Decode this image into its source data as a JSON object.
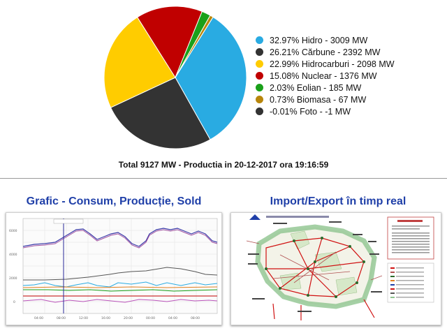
{
  "chart_data": {
    "type": "pie",
    "slices": [
      {
        "label": "32.97% Hidro - 3009 MW",
        "value": 32.97,
        "color": "#29abe2"
      },
      {
        "label": "26.21% Cărbune - 2392 MW",
        "value": 26.21,
        "color": "#333333"
      },
      {
        "label": "22.99% Hidrocarburi - 2098 MW",
        "value": 22.99,
        "color": "#ffcc00"
      },
      {
        "label": "15.08% Nuclear - 1376 MW",
        "value": 15.08,
        "color": "#c00000"
      },
      {
        "label": "2.03% Eolian - 185 MW",
        "value": 2.03,
        "color": "#1aa01a"
      },
      {
        "label": "0.73% Biomasa - 67 MW",
        "value": 0.73,
        "color": "#b8860b"
      },
      {
        "label": "-0.01% Foto - -1 MW",
        "value": -0.01,
        "color": "#333333"
      }
    ],
    "start_angle_deg": -58,
    "title": "Total 9127 MW - Productia in 20-12-2017 ora 19:16:59",
    "legend_position": "right"
  },
  "panels": {
    "left": {
      "title": "Grafic - Consum, Producție, Sold"
    },
    "right": {
      "title": "Import/Export în timp real"
    }
  }
}
